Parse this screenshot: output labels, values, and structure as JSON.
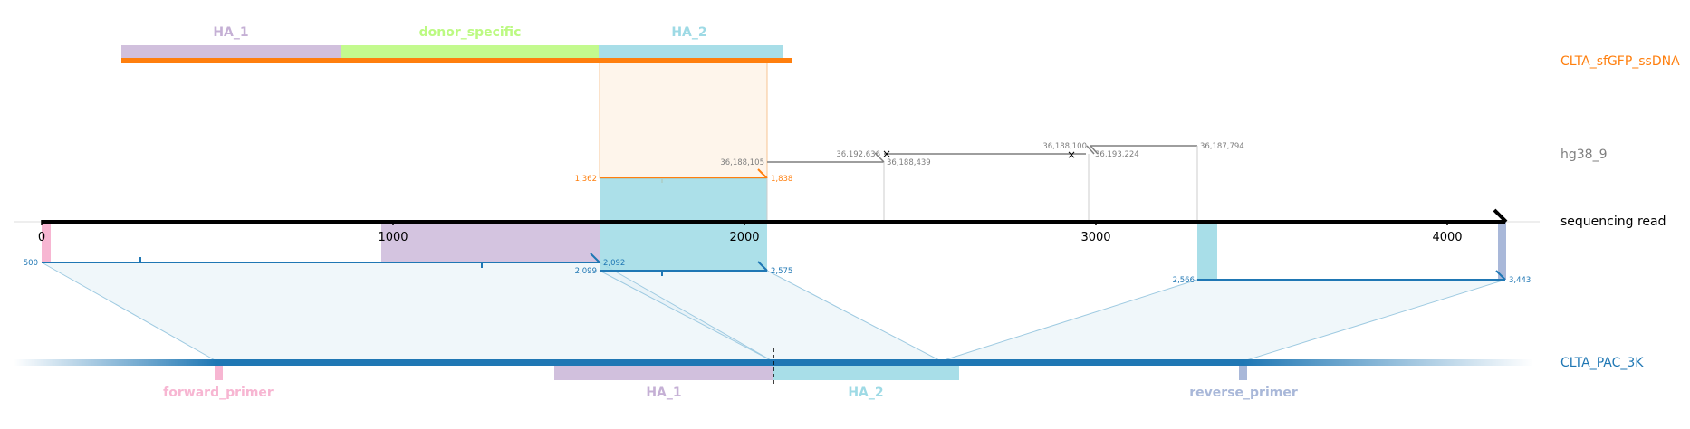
{
  "colors": {
    "donor": "#ff7f0e",
    "hg38": "#7f7f7f",
    "read": "#000000",
    "target": "#1f77b4",
    "ha1": "#c5b0d5",
    "ha2": "#9edae5",
    "donor_specific": "#bcfa82",
    "forward_primer": "#f7b6d2",
    "reverse_primer": "#a9b8d9",
    "donor_overlay": "#fdebd8",
    "target_overlay": "#e4f1f6"
  },
  "tracks": {
    "donor": "CLTA_sfGFP_ssDNA",
    "hg38": "hg38_9",
    "read": "sequencing read",
    "target": "CLTA_PAC_3K"
  },
  "donor_features": [
    {
      "name": "HA_1",
      "color": "#c5b0d5"
    },
    {
      "name": "donor_specific",
      "color": "#bcfa82"
    },
    {
      "name": "HA_2",
      "color": "#9edae5"
    }
  ],
  "target_features": [
    {
      "name": "forward_primer",
      "color": "#f7b6d2"
    },
    {
      "name": "HA_1",
      "color": "#c5b0d5"
    },
    {
      "name": "HA_2",
      "color": "#9edae5"
    },
    {
      "name": "reverse_primer",
      "color": "#a9b8d9"
    }
  ],
  "read_axis": {
    "ticks": [
      "0",
      "1000",
      "2000",
      "3000",
      "4000"
    ]
  },
  "donor_alignment": {
    "start": "1,362",
    "end": "1,838"
  },
  "hg38_alignments": [
    {
      "start": "36,188,105",
      "end": "36,188,439"
    },
    {
      "start": "36,192,636",
      "end": "36,188,100"
    },
    {
      "start": "36,193,224",
      "end": "36,187,794"
    }
  ],
  "target_alignments": [
    {
      "start": "500",
      "end": "2,092"
    },
    {
      "start": "2,099",
      "end": "2,575"
    },
    {
      "start": "2,566",
      "end": "3,443"
    }
  ]
}
